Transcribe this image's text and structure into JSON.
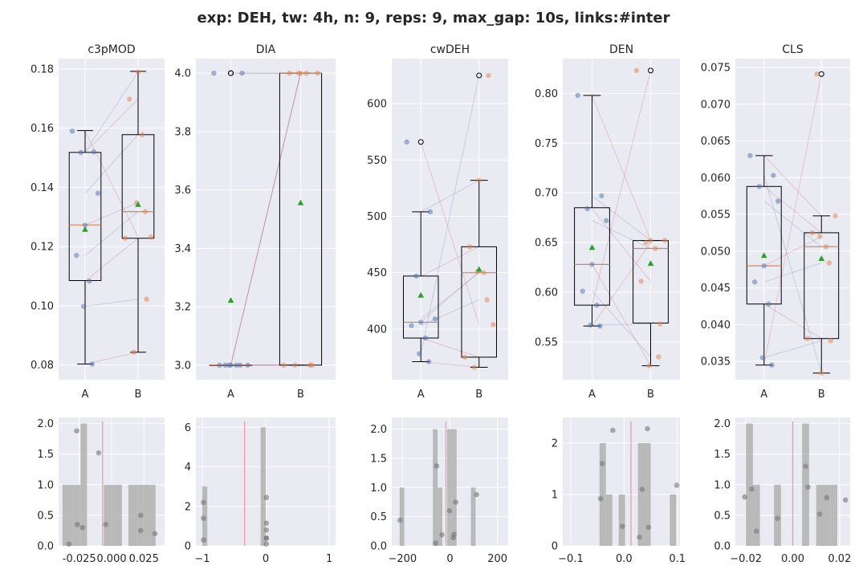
{
  "figure": {
    "title": "exp: DEH, tw: 4h, n: 9, reps: 9, max_gap: 10s, links:#inter",
    "colors": {
      "panel_bg": "#eaeaf2",
      "grid": "#ffffff",
      "point_a": "#4c72b0",
      "point_b": "#dd8452",
      "median": "#dd8452",
      "mean": "#2ca02c",
      "link": "#c44e52",
      "link_alt": "#4c72b0",
      "hist": "#b0b0b0",
      "diff_point": "#777777",
      "zero_line": "#e8a0a0"
    }
  },
  "chart_data": [
    {
      "type": "box",
      "title": "c3pMOD",
      "categories": [
        "A",
        "B"
      ],
      "ylim": [
        0.075,
        0.1835
      ],
      "yticks": [
        0.08,
        0.1,
        0.12,
        0.14,
        0.16,
        0.18
      ],
      "yticklabels": [
        "0.08",
        "0.10",
        "0.12",
        "0.14",
        "0.16",
        "0.18"
      ],
      "boxes": [
        {
          "q1": 0.1085,
          "median": 0.1273,
          "q3": 0.1518,
          "whislo": 0.0803,
          "whishi": 0.1592,
          "mean": 0.1258,
          "fliers": []
        },
        {
          "q1": 0.1228,
          "median": 0.1318,
          "q3": 0.1578,
          "whislo": 0.0843,
          "whishi": 0.1792,
          "mean": 0.1342,
          "fliers": []
        }
      ],
      "points": [
        {
          "a": 0.159,
          "b": 0.1232
        },
        {
          "a": 0.152,
          "b": 0.179
        },
        {
          "a": 0.1518,
          "b": 0.1698
        },
        {
          "a": 0.138,
          "b": 0.1578
        },
        {
          "a": 0.1272,
          "b": 0.1348
        },
        {
          "a": 0.117,
          "b": 0.1318
        },
        {
          "a": 0.1083,
          "b": 0.1228
        },
        {
          "a": 0.0998,
          "b": 0.1022
        },
        {
          "a": 0.0803,
          "b": 0.0843
        }
      ],
      "diff_hist": {
        "xlim": [
          -0.041,
          0.041
        ],
        "xticks": [
          -0.025,
          0.0,
          0.025
        ],
        "xticklabels": [
          "-0.025",
          "0.000",
          "0.025"
        ],
        "ylim": [
          0,
          2.1
        ],
        "yticks": [
          0,
          0.5,
          1.0,
          1.5,
          2.0
        ],
        "yticklabels": [
          "0.0",
          "0.5",
          "1.0",
          "1.5",
          "2.0"
        ],
        "bins": [
          {
            "x0": -0.038,
            "x1": -0.031,
            "count": 1
          },
          {
            "x0": -0.031,
            "x1": -0.024,
            "count": 1
          },
          {
            "x0": -0.024,
            "x1": -0.019,
            "count": 2
          },
          {
            "x0": -0.006,
            "x1": 0.001,
            "count": 1
          },
          {
            "x0": 0.001,
            "x1": 0.008,
            "count": 1
          },
          {
            "x0": 0.013,
            "x1": 0.02,
            "count": 1
          },
          {
            "x0": 0.02,
            "x1": 0.027,
            "count": 1
          },
          {
            "x0": 0.027,
            "x1": 0.034,
            "count": 1
          }
        ],
        "points": [
          [
            -0.033,
            0.03
          ],
          [
            -0.027,
            1.88
          ],
          [
            -0.0265,
            0.35
          ],
          [
            -0.0225,
            0.3
          ],
          [
            -0.01,
            1.52
          ],
          [
            -0.0045,
            0.35
          ],
          [
            0.0225,
            0.5
          ],
          [
            0.0225,
            0.25
          ],
          [
            0.0335,
            0.2
          ]
        ],
        "mean_line": -0.007
      }
    },
    {
      "type": "box",
      "title": "DIA",
      "categories": [
        "A",
        "B"
      ],
      "ylim": [
        2.95,
        4.05
      ],
      "yticks": [
        3.0,
        3.2,
        3.4,
        3.6,
        3.8,
        4.0
      ],
      "yticklabels": [
        "3.0",
        "3.2",
        "3.4",
        "3.6",
        "3.8",
        "4.0"
      ],
      "boxes": [
        {
          "q1": 3.0,
          "median": 3.0,
          "q3": 3.0,
          "whislo": 3.0,
          "whishi": 3.0,
          "mean": 3.222,
          "fliers": [
            4.0,
            4.0
          ]
        },
        {
          "q1": 3.0,
          "median": 4.0,
          "q3": 4.0,
          "whislo": 3.0,
          "whishi": 4.0,
          "mean": 3.556,
          "fliers": []
        }
      ],
      "points": [
        {
          "a": 4.0,
          "b": 4.0
        },
        {
          "a": 4.0,
          "b": 4.0
        },
        {
          "a": 3.0,
          "b": 4.0
        },
        {
          "a": 3.0,
          "b": 4.0
        },
        {
          "a": 3.0,
          "b": 4.0
        },
        {
          "a": 3.0,
          "b": 3.0
        },
        {
          "a": 3.0,
          "b": 3.0
        },
        {
          "a": 3.0,
          "b": 3.0
        },
        {
          "a": 3.0,
          "b": 3.0
        }
      ],
      "diff_hist": {
        "xlim": [
          -1.1,
          1.1
        ],
        "xticks": [
          -1,
          0,
          1
        ],
        "xticklabels": [
          "−1",
          "0",
          "1"
        ],
        "ylim": [
          0,
          6.5
        ],
        "yticks": [
          0,
          2,
          4,
          6
        ],
        "yticklabels": [
          "0",
          "2",
          "4",
          "6"
        ],
        "bins": [
          {
            "x0": -1.0,
            "x1": -0.92,
            "count": 3
          },
          {
            "x0": -0.08,
            "x1": 0.0,
            "count": 6
          }
        ],
        "points": [
          [
            -0.98,
            2.2
          ],
          [
            -0.98,
            1.4
          ],
          [
            -0.98,
            0.3
          ],
          [
            0.01,
            2.45
          ],
          [
            0.01,
            1.15
          ],
          [
            0.01,
            0.8
          ],
          [
            0.01,
            0.4
          ],
          [
            0.01,
            0.38
          ],
          [
            0.01,
            0.1
          ]
        ],
        "mean_line": -0.333
      }
    },
    {
      "type": "box",
      "title": "cwDEH",
      "categories": [
        "A",
        "B"
      ],
      "ylim": [
        355,
        640
      ],
      "yticks": [
        400,
        450,
        500,
        550,
        600
      ],
      "yticklabels": [
        "400",
        "450",
        "500",
        "550",
        "600"
      ],
      "boxes": [
        {
          "q1": 392,
          "median": 406,
          "q3": 447,
          "whislo": 371,
          "whishi": 504,
          "mean": 430,
          "fliers": [
            566
          ]
        },
        {
          "q1": 375,
          "median": 450,
          "q3": 473,
          "whislo": 366,
          "whishi": 532,
          "mean": 453,
          "fliers": [
            625
          ]
        }
      ],
      "points": [
        {
          "a": 566,
          "b": 404
        },
        {
          "a": 504,
          "b": 532
        },
        {
          "a": 447,
          "b": 473
        },
        {
          "a": 409,
          "b": 450
        },
        {
          "a": 406,
          "b": 451
        },
        {
          "a": 403,
          "b": 426
        },
        {
          "a": 392,
          "b": 375
        },
        {
          "a": 378,
          "b": 625
        },
        {
          "a": 371,
          "b": 366
        }
      ],
      "diff_hist": {
        "xlim": [
          -245,
          245
        ],
        "xticks": [
          -200,
          0,
          200
        ],
        "xticklabels": [
          "−200",
          "0",
          "200"
        ],
        "ylim": [
          0,
          2.2
        ],
        "yticks": [
          0,
          0.5,
          1.0,
          1.5,
          2.0
        ],
        "yticklabels": [
          "0.0",
          "0.5",
          "1.0",
          "1.5",
          "2.0"
        ],
        "bins": [
          {
            "x0": -212,
            "x1": -192,
            "count": 1
          },
          {
            "x0": -72,
            "x1": -52,
            "count": 2
          },
          {
            "x0": -52,
            "x1": -32,
            "count": 1
          },
          {
            "x0": -12,
            "x1": 8,
            "count": 2
          },
          {
            "x0": 8,
            "x1": 28,
            "count": 2
          },
          {
            "x0": 88,
            "x1": 108,
            "count": 1
          }
        ],
        "points": [
          [
            -210,
            0.44
          ],
          [
            -56,
            1.37
          ],
          [
            -60,
            0.05
          ],
          [
            -34,
            0.19
          ],
          [
            -2,
            0.6
          ],
          [
            14,
            0.14
          ],
          [
            17,
            0.2
          ],
          [
            24,
            0.75
          ],
          [
            112,
            0.88
          ]
        ],
        "mean_line": -17
      }
    },
    {
      "type": "box",
      "title": "DEN",
      "categories": [
        "A",
        "B"
      ],
      "ylim": [
        0.512,
        0.835
      ],
      "yticks": [
        0.55,
        0.6,
        0.65,
        0.7,
        0.75,
        0.8
      ],
      "yticklabels": [
        "0.55",
        "0.60",
        "0.65",
        "0.70",
        "0.75",
        "0.80"
      ],
      "boxes": [
        {
          "q1": 0.587,
          "median": 0.628,
          "q3": 0.685,
          "whislo": 0.566,
          "whishi": 0.798,
          "mean": 0.645,
          "fliers": []
        },
        {
          "q1": 0.569,
          "median": 0.644,
          "q3": 0.652,
          "whislo": 0.526,
          "whishi": 0.652,
          "mean": 0.629,
          "fliers": [
            0.823
          ]
        }
      ],
      "points": [
        {
          "a": 0.798,
          "b": 0.652
        },
        {
          "a": 0.697,
          "b": 0.652
        },
        {
          "a": 0.684,
          "b": 0.611
        },
        {
          "a": 0.672,
          "b": 0.644
        },
        {
          "a": 0.628,
          "b": 0.526
        },
        {
          "a": 0.601,
          "b": 0.535
        },
        {
          "a": 0.587,
          "b": 0.823
        },
        {
          "a": 0.567,
          "b": 0.568
        },
        {
          "a": 0.566,
          "b": 0.65
        }
      ],
      "diff_hist": {
        "xlim": [
          -0.115,
          0.105
        ],
        "xticks": [
          -0.1,
          0.0,
          0.1
        ],
        "xticklabels": [
          "−0.1",
          "0.0",
          "0.1"
        ],
        "ylim": [
          0,
          2.5
        ],
        "yticks": [
          0,
          1,
          2
        ],
        "yticklabels": [
          "0",
          "1",
          "2"
        ],
        "bins": [
          {
            "x0": -0.046,
            "x1": -0.034,
            "count": 2
          },
          {
            "x0": -0.034,
            "x1": -0.022,
            "count": 1
          },
          {
            "x0": -0.01,
            "x1": 0.002,
            "count": 1
          },
          {
            "x0": 0.026,
            "x1": 0.038,
            "count": 2
          },
          {
            "x0": 0.038,
            "x1": 0.05,
            "count": 2
          },
          {
            "x0": 0.086,
            "x1": 0.098,
            "count": 1
          }
        ],
        "points": [
          [
            -0.044,
            0.92
          ],
          [
            -0.041,
            1.6
          ],
          [
            -0.021,
            2.25
          ],
          [
            -0.003,
            0.38
          ],
          [
            0.029,
            0.17
          ],
          [
            0.034,
            1.1
          ],
          [
            0.044,
            2.28
          ],
          [
            0.046,
            0.36
          ],
          [
            0.099,
            1.18
          ]
        ],
        "mean_line": 0.013
      }
    },
    {
      "type": "box",
      "title": "CLS",
      "categories": [
        "A",
        "B"
      ],
      "ylim": [
        0.0325,
        0.0762
      ],
      "yticks": [
        0.035,
        0.04,
        0.045,
        0.05,
        0.055,
        0.06,
        0.065,
        0.07,
        0.075
      ],
      "yticklabels": [
        "0.035",
        "0.040",
        "0.045",
        "0.050",
        "0.055",
        "0.060",
        "0.065",
        "0.070",
        "0.075"
      ],
      "boxes": [
        {
          "q1": 0.0428,
          "median": 0.048,
          "q3": 0.0588,
          "whislo": 0.0345,
          "whishi": 0.063,
          "mean": 0.0494,
          "fliers": []
        },
        {
          "q1": 0.0381,
          "median": 0.0506,
          "q3": 0.0525,
          "whislo": 0.0334,
          "whishi": 0.0548,
          "mean": 0.049,
          "fliers": [
            0.0741
          ]
        }
      ],
      "points": [
        {
          "a": 0.063,
          "b": 0.0548
        },
        {
          "a": 0.0603,
          "b": 0.0334
        },
        {
          "a": 0.0588,
          "b": 0.0525
        },
        {
          "a": 0.0568,
          "b": 0.0506
        },
        {
          "a": 0.048,
          "b": 0.052
        },
        {
          "a": 0.0458,
          "b": 0.0484
        },
        {
          "a": 0.0428,
          "b": 0.0381
        },
        {
          "a": 0.0355,
          "b": 0.0378
        },
        {
          "a": 0.0345,
          "b": 0.0741
        }
      ],
      "diff_hist": {
        "xlim": [
          -0.0245,
          0.0245
        ],
        "xticks": [
          -0.02,
          0.0,
          0.02
        ],
        "xticklabels": [
          "−0.02",
          "0.00",
          "0.02"
        ],
        "ylim": [
          0,
          2.1
        ],
        "yticks": [
          0,
          0.5,
          1.0,
          1.5,
          2.0
        ],
        "yticklabels": [
          "0.0",
          "0.5",
          "1.0",
          "1.5",
          "2.0"
        ],
        "bins": [
          {
            "x0": -0.02,
            "x1": -0.017,
            "count": 2
          },
          {
            "x0": -0.017,
            "x1": -0.014,
            "count": 1
          },
          {
            "x0": -0.008,
            "x1": -0.005,
            "count": 1
          },
          {
            "x0": 0.004,
            "x1": 0.007,
            "count": 2
          },
          {
            "x0": 0.01,
            "x1": 0.013,
            "count": 1
          },
          {
            "x0": 0.013,
            "x1": 0.016,
            "count": 1
          },
          {
            "x0": 0.016,
            "x1": 0.019,
            "count": 1
          }
        ],
        "points": [
          [
            -0.0205,
            0.8
          ],
          [
            -0.0175,
            0.93
          ],
          [
            -0.0155,
            0.24
          ],
          [
            -0.0065,
            0.45
          ],
          [
            0.0055,
            1.3
          ],
          [
            0.0065,
            0.96
          ],
          [
            0.0115,
            0.52
          ],
          [
            0.0145,
            0.79
          ],
          [
            0.0225,
            0.75
          ]
        ],
        "mean_line": 0.0
      }
    }
  ]
}
